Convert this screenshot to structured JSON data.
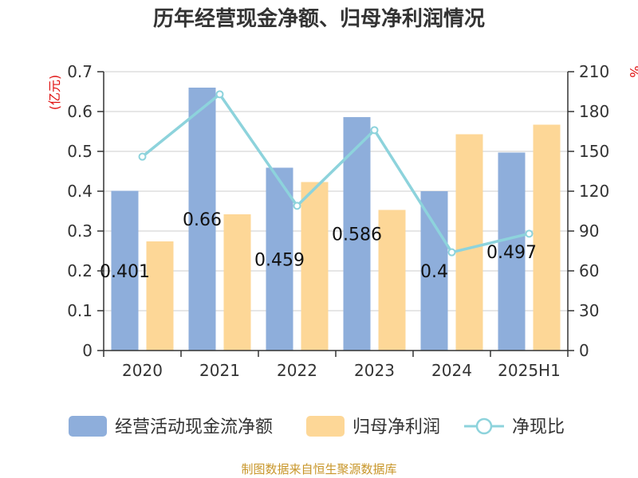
{
  "chart_data": {
    "type": "bar",
    "title": "历年经营现金净额、归母净利润情况",
    "categories": [
      "2020",
      "2021",
      "2022",
      "2023",
      "2024",
      "2025H1"
    ],
    "series": [
      {
        "name": "经营活动现金流净额",
        "kind": "bar",
        "axis": "left",
        "color": "#8eaedb",
        "values": [
          0.401,
          0.66,
          0.459,
          0.586,
          0.4,
          0.497
        ],
        "labels": [
          "0.401",
          "0.66",
          "0.459",
          "0.586",
          "0.4",
          "0.497"
        ]
      },
      {
        "name": "归母净利润",
        "kind": "bar",
        "axis": "left",
        "color": "#fdd797",
        "values": [
          0.274,
          0.342,
          0.423,
          0.353,
          0.543,
          0.567
        ]
      },
      {
        "name": "净现比",
        "kind": "line",
        "axis": "right",
        "color": "#8dd3dc",
        "values": [
          146,
          193,
          109,
          166,
          74,
          88
        ]
      }
    ],
    "yleft": {
      "label": "(亿元)",
      "lim": [
        0,
        0.7
      ],
      "ticks": [
        "0",
        "0.1",
        "0.2",
        "0.3",
        "0.4",
        "0.5",
        "0.6",
        "0.7"
      ]
    },
    "yright": {
      "label": "%",
      "lim": [
        0,
        210
      ],
      "ticks": [
        "0",
        "30",
        "60",
        "90",
        "120",
        "150",
        "180",
        "210"
      ]
    },
    "grid": true,
    "legend_position": "bottom"
  },
  "source": "制图数据来自恒生聚源数据库"
}
